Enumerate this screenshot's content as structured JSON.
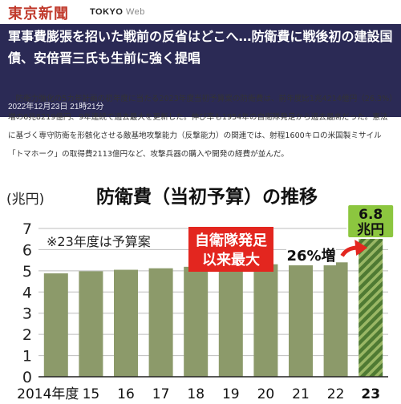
{
  "site": {
    "logo": "東京新聞",
    "web_brand": "TOKYO",
    "web_suffix": "Web"
  },
  "article": {
    "headline": "軍事費膨張を招いた戦前の反省はどこへ…防衛費に戦後初の建設国債、安倍晋三氏も生前に強く提唱",
    "date": "2022年12月23日 21時21分",
    "body": "防衛力強化の5カ年計画の初年度に当たる2023年度当初予算案の防衛費は、前年度比1兆4214億円（26.3%）増の6兆8219億円、9年連続で過去最大を更新した。伸び率も1954年の自衛隊発足から過去最高だった。憲法に基づく専守防衛を形骸化させる敵基地攻撃能力（反撃能力）の関連では、射程1600キロの米国製ミサイル「トマホーク」の取得費2113億円など、攻撃兵器の購入や開発の経費が並んだ。"
  },
  "chart_data": {
    "type": "bar",
    "title": "防衛費（当初予算）の推移",
    "ylabel": "(兆円)",
    "note": "※23年度は予算案",
    "categories": [
      "2014年度",
      "15",
      "16",
      "17",
      "18",
      "19",
      "20",
      "21",
      "22",
      "23"
    ],
    "values": [
      4.88,
      4.98,
      5.05,
      5.12,
      5.19,
      5.26,
      5.31,
      5.34,
      5.4,
      6.82
    ],
    "ylim": [
      0,
      7
    ],
    "yticks": [
      0,
      1,
      2,
      3,
      4,
      5,
      6,
      7
    ],
    "grid": true,
    "callout_box": "自衛隊発足\n以来最大",
    "increase_label": "26%増",
    "last_value_label": "6.8\n兆円",
    "colors": {
      "bar": "#8c9a6a",
      "bar_last": "#4f7a33",
      "bar_last_stripe": "#9ab765",
      "callout_box": "#e3261f",
      "value_badge": "#8cc63f",
      "arrow": "#e3261f",
      "grid": "#bdbdbd"
    }
  }
}
